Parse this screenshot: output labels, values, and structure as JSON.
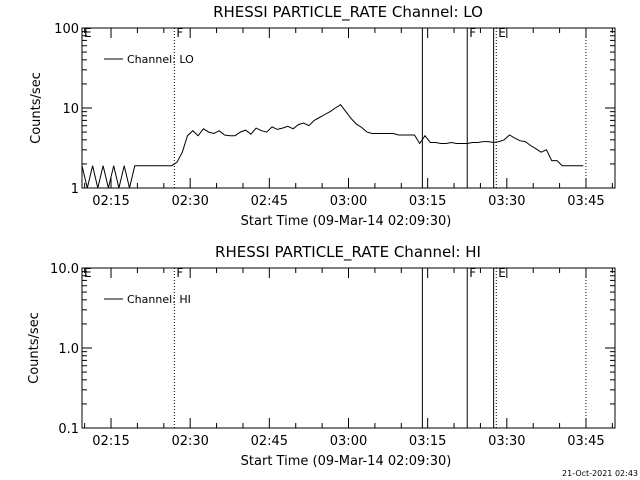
{
  "stamp": "21-Oct-2021 02:43",
  "chart_data": [
    {
      "type": "line",
      "title": "RHESSI PARTICLE_RATE Channel: LO",
      "xlabel": "Start Time (09-Mar-14 02:09:30)",
      "ylabel": "Counts/sec",
      "yscale": "log",
      "ylim": [
        1,
        100
      ],
      "xlim": [
        "02:09:30",
        "03:50:30"
      ],
      "xticks": [
        "02:15",
        "02:30",
        "02:45",
        "03:00",
        "03:15",
        "03:30",
        "03:45"
      ],
      "yticks": [
        "1",
        "10",
        "100"
      ],
      "legend": "upper-left",
      "series": [
        {
          "name": "Channel: LO",
          "x": [
            "02:09:30",
            "02:10:30",
            "02:11:30",
            "02:12:30",
            "02:13:30",
            "02:14:30",
            "02:15:30",
            "02:16:30",
            "02:17:30",
            "02:18:30",
            "02:19:30",
            "02:20:30",
            "02:21:30",
            "02:22:30",
            "02:23:30",
            "02:24:30",
            "02:25:30",
            "02:26:30",
            "02:27:30",
            "02:28:30",
            "02:29:30",
            "02:30:30",
            "02:31:30",
            "02:32:30",
            "02:33:30",
            "02:34:30",
            "02:35:30",
            "02:36:30",
            "02:37:30",
            "02:38:30",
            "02:39:30",
            "02:40:30",
            "02:41:30",
            "02:42:30",
            "02:43:30",
            "02:44:30",
            "02:45:30",
            "02:46:30",
            "02:47:30",
            "02:48:30",
            "02:49:30",
            "02:50:30",
            "02:51:30",
            "02:52:30",
            "02:53:30",
            "02:54:30",
            "02:55:30",
            "02:56:30",
            "02:57:30",
            "02:58:30",
            "02:59:30",
            "03:00:30",
            "03:01:30",
            "03:02:30",
            "03:03:30",
            "03:04:30",
            "03:05:30",
            "03:06:30",
            "03:07:30",
            "03:08:30",
            "03:09:30",
            "03:10:30",
            "03:11:30",
            "03:12:30",
            "03:13:30",
            "03:14:30",
            "03:15:30",
            "03:16:30",
            "03:17:30",
            "03:18:30",
            "03:19:30",
            "03:20:30",
            "03:21:30",
            "03:22:30",
            "03:23:30",
            "03:24:30",
            "03:25:30",
            "03:26:30",
            "03:27:30",
            "03:28:30",
            "03:29:30",
            "03:30:30",
            "03:31:30",
            "03:32:30",
            "03:33:30",
            "03:34:30",
            "03:35:30",
            "03:36:30",
            "03:37:30",
            "03:38:30",
            "03:39:30",
            "03:40:30",
            "03:41:30",
            "03:42:30",
            "03:43:30",
            "03:44:30"
          ],
          "y": [
            1.9,
            1.0,
            1.9,
            1.0,
            1.9,
            1.0,
            1.9,
            1.0,
            1.9,
            1.0,
            1.9,
            1.9,
            1.9,
            1.9,
            1.9,
            1.9,
            1.9,
            1.9,
            2.1,
            2.8,
            4.5,
            5.2,
            4.5,
            5.5,
            5.0,
            4.8,
            5.2,
            4.6,
            4.5,
            4.5,
            5.0,
            5.3,
            4.7,
            5.6,
            5.2,
            5.0,
            5.8,
            5.4,
            5.6,
            5.9,
            5.5,
            6.2,
            6.5,
            6.0,
            7.0,
            7.6,
            8.3,
            9.0,
            10.0,
            11.0,
            9.0,
            7.4,
            6.3,
            5.7,
            5.0,
            4.8,
            4.8,
            4.8,
            4.8,
            4.8,
            4.6,
            4.6,
            4.6,
            4.6,
            3.6,
            4.5,
            3.7,
            3.7,
            3.6,
            3.6,
            3.7,
            3.6,
            3.6,
            3.6,
            3.7,
            3.7,
            3.8,
            3.8,
            3.7,
            3.8,
            4.0,
            4.6,
            4.2,
            3.9,
            3.8,
            3.4,
            3.1,
            2.8,
            3.0,
            2.2,
            2.2,
            1.9,
            1.9,
            1.9,
            1.9,
            1.9
          ]
        }
      ]
    },
    {
      "type": "line",
      "title": "RHESSI PARTICLE_RATE Channel: HI",
      "xlabel": "Start Time (09-Mar-14 02:09:30)",
      "ylabel": "Counts/sec",
      "yscale": "log",
      "ylim": [
        0.1,
        10
      ],
      "xlim": [
        "02:09:30",
        "03:50:30"
      ],
      "xticks": [
        "02:15",
        "02:30",
        "02:45",
        "03:00",
        "03:15",
        "03:30",
        "03:45"
      ],
      "yticks": [
        "0.1",
        "1.0",
        "10.0"
      ],
      "legend": "upper-left",
      "series": [
        {
          "name": "Channel: HI",
          "x": [],
          "y": []
        }
      ]
    }
  ],
  "markers": [
    {
      "label": "E",
      "time": "02:09:30",
      "style": "none"
    },
    {
      "label": "F",
      "time": "02:27:00",
      "style": "dotted"
    },
    {
      "label": "",
      "time": "03:14:00",
      "style": "solid"
    },
    {
      "label": "F",
      "time": "03:22:30",
      "style": "solid"
    },
    {
      "label": "",
      "time": "03:27:30",
      "style": "solid"
    },
    {
      "label": "E",
      "time": "03:28:00",
      "style": "dotted"
    },
    {
      "label": "",
      "time": "03:45:00",
      "style": "dotted"
    }
  ]
}
